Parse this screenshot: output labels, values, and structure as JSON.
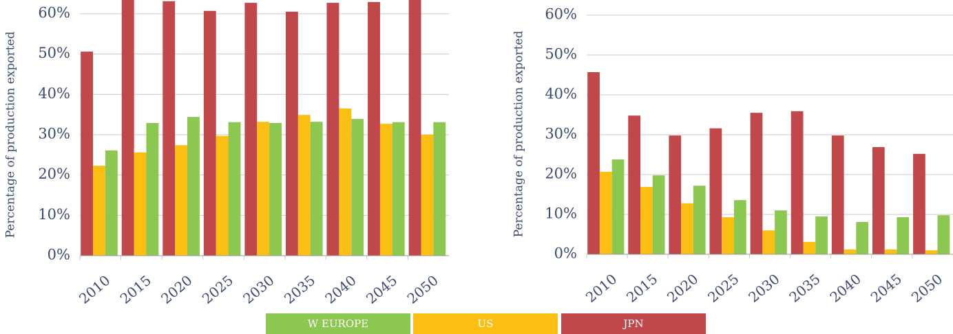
{
  "chart_data": [
    {
      "type": "bar",
      "ylabel": "Percentage of production exported",
      "categories": [
        "2010",
        "2015",
        "2020",
        "2025",
        "2030",
        "2035",
        "2040",
        "2045",
        "2050"
      ],
      "series": [
        {
          "name": "JPN",
          "color": "#c0474a",
          "values": [
            50.6,
            64,
            63.1,
            60.7,
            62.7,
            60.5,
            62.7,
            62.9,
            64
          ]
        },
        {
          "name": "US",
          "color": "#fbbf14",
          "values": [
            22.3,
            25.6,
            27.4,
            29.7,
            33.2,
            34.9,
            36.5,
            32.7,
            30.0
          ]
        },
        {
          "name": "W EUROPE",
          "color": "#8cc751",
          "values": [
            26.1,
            32.9,
            34.4,
            33.1,
            32.9,
            33.2,
            33.9,
            33.1,
            33.1
          ]
        }
      ],
      "ylim": [
        0,
        63.4
      ],
      "yticks": [
        {
          "value": 0,
          "label": "0%"
        },
        {
          "value": 10,
          "label": "10%"
        },
        {
          "value": 20,
          "label": "20%"
        },
        {
          "value": 30,
          "label": "30%"
        },
        {
          "value": 40,
          "label": "40%"
        },
        {
          "value": 50,
          "label": "50%"
        },
        {
          "value": 60,
          "label": "60%"
        }
      ],
      "grid": true
    },
    {
      "type": "bar",
      "ylabel": "Percentage of production exported",
      "categories": [
        "2010",
        "2015",
        "2020",
        "2025",
        "2030",
        "2035",
        "2040",
        "2045",
        "2050"
      ],
      "series": [
        {
          "name": "JPN",
          "color": "#c0474a",
          "values": [
            45.7,
            34.8,
            29.8,
            31.6,
            35.5,
            35.9,
            29.8,
            26.9,
            25.2
          ]
        },
        {
          "name": "US",
          "color": "#fbbf14",
          "values": [
            20.7,
            16.9,
            12.8,
            9.3,
            6.0,
            3.1,
            1.2,
            1.2,
            1.0
          ]
        },
        {
          "name": "W EUROPE",
          "color": "#8cc751",
          "values": [
            23.8,
            19.8,
            17.2,
            13.6,
            11.0,
            9.5,
            8.1,
            9.3,
            9.8
          ]
        }
      ],
      "ylim": [
        0,
        63.8
      ],
      "yticks": [
        {
          "value": 0,
          "label": "0%"
        },
        {
          "value": 10,
          "label": "10%"
        },
        {
          "value": 20,
          "label": "20%"
        },
        {
          "value": 30,
          "label": "30%"
        },
        {
          "value": 40,
          "label": "40%"
        },
        {
          "value": 50,
          "label": "50%"
        },
        {
          "value": 60,
          "label": "60%"
        }
      ],
      "grid": true
    }
  ]
}
